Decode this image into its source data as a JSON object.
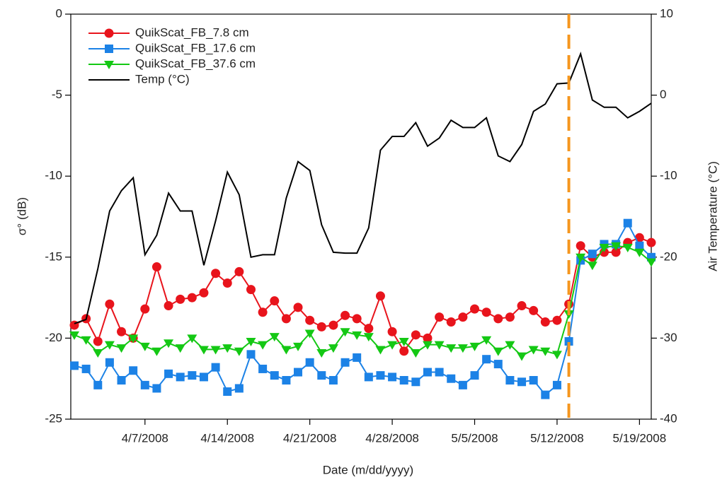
{
  "chart_data": {
    "type": "line",
    "xlabel": "Date (m/dd/yyyy)",
    "ylabel": "σ° (dB)",
    "y2label": "Air Temperature (°C)",
    "x": [
      "4/1/2008",
      "4/2/2008",
      "4/3/2008",
      "4/4/2008",
      "4/5/2008",
      "4/6/2008",
      "4/7/2008",
      "4/8/2008",
      "4/9/2008",
      "4/10/2008",
      "4/11/2008",
      "4/12/2008",
      "4/13/2008",
      "4/14/2008",
      "4/15/2008",
      "4/16/2008",
      "4/17/2008",
      "4/18/2008",
      "4/19/2008",
      "4/20/2008",
      "4/21/2008",
      "4/22/2008",
      "4/23/2008",
      "4/24/2008",
      "4/25/2008",
      "4/26/2008",
      "4/27/2008",
      "4/28/2008",
      "4/29/2008",
      "4/30/2008",
      "5/1/2008",
      "5/2/2008",
      "5/3/2008",
      "5/4/2008",
      "5/5/2008",
      "5/6/2008",
      "5/7/2008",
      "5/8/2008",
      "5/9/2008",
      "5/10/2008",
      "5/11/2008",
      "5/12/2008",
      "5/13/2008",
      "5/14/2008",
      "5/15/2008",
      "5/16/2008",
      "5/17/2008",
      "5/18/2008",
      "5/19/2008",
      "5/20/2008"
    ],
    "xlim": [
      "4/1/2008",
      "5/20/2008"
    ],
    "xticks": [
      "4/7/2008",
      "4/14/2008",
      "4/21/2008",
      "4/28/2008",
      "5/5/2008",
      "5/12/2008",
      "5/19/2008"
    ],
    "ylim": [
      -25,
      0
    ],
    "yticks": [
      0,
      -5,
      -10,
      -15,
      -20,
      -25
    ],
    "y2lim": [
      -40,
      10
    ],
    "y2ticks": [
      10,
      0,
      -10,
      -20,
      -30,
      -40
    ],
    "legend": "upper left",
    "vertical_line": {
      "x": "5/13/2008",
      "color": "#f5961e"
    },
    "series": [
      {
        "name": "QuikScat_FB_7.8 cm",
        "color": "#e8141c",
        "marker": "circle",
        "values": [
          -19.2,
          -18.8,
          -20.2,
          -17.9,
          -19.6,
          -20.0,
          -18.2,
          -15.6,
          -18.0,
          -17.6,
          -17.5,
          -17.2,
          -16.0,
          -16.6,
          -15.9,
          -17.0,
          -18.4,
          -17.7,
          -18.8,
          -18.1,
          -18.9,
          -19.3,
          -19.2,
          -18.6,
          -18.8,
          -19.4,
          -17.4,
          -19.6,
          -20.8,
          -19.8,
          -20.0,
          -18.7,
          -19.0,
          -18.7,
          -18.2,
          -18.4,
          -18.8,
          -18.7,
          -18.0,
          -18.3,
          -19.0,
          -18.9,
          -17.9,
          -14.3,
          -15.0,
          -14.7,
          -14.7,
          -14.1,
          -13.8,
          -14.1
        ]
      },
      {
        "name": "QuikScat_FB_17.6 cm",
        "color": "#1c82e6",
        "marker": "square",
        "values": [
          -21.7,
          -21.9,
          -22.9,
          -21.5,
          -22.6,
          -22.0,
          -22.9,
          -23.1,
          -22.2,
          -22.4,
          -22.3,
          -22.4,
          -21.8,
          -23.3,
          -23.1,
          -21.0,
          -21.9,
          -22.3,
          -22.6,
          -22.1,
          -21.5,
          -22.3,
          -22.6,
          -21.5,
          -21.2,
          -22.4,
          -22.3,
          -22.4,
          -22.6,
          -22.7,
          -22.1,
          -22.1,
          -22.5,
          -22.9,
          -22.3,
          -21.3,
          -21.6,
          -22.6,
          -22.7,
          -22.6,
          -23.5,
          -22.9,
          -20.2,
          -15.2,
          -14.8,
          -14.2,
          -14.2,
          -12.9,
          -14.3,
          -15.0
        ]
      },
      {
        "name": "QuikScat_FB_37.6 cm",
        "color": "#14c814",
        "marker": "triangle-down",
        "values": [
          -19.8,
          -20.1,
          -20.9,
          -20.4,
          -20.6,
          -20.0,
          -20.5,
          -20.8,
          -20.3,
          -20.6,
          -20.0,
          -20.7,
          -20.7,
          -20.6,
          -20.8,
          -20.2,
          -20.4,
          -19.9,
          -20.7,
          -20.5,
          -19.7,
          -20.9,
          -20.6,
          -19.6,
          -19.8,
          -19.9,
          -20.7,
          -20.4,
          -20.2,
          -20.9,
          -20.4,
          -20.4,
          -20.6,
          -20.6,
          -20.5,
          -20.1,
          -20.8,
          -20.4,
          -21.1,
          -20.7,
          -20.8,
          -21.0,
          -18.5,
          -15.0,
          -15.5,
          -14.4,
          -14.3,
          -14.4,
          -14.7,
          -15.3
        ]
      },
      {
        "name": "Temp (°C)",
        "color": "#000000",
        "marker": "none",
        "axis": "y2",
        "values": [
          -28.2,
          -27.7,
          -21.4,
          -14.3,
          -11.8,
          -10.2,
          -19.7,
          -17.3,
          -12.1,
          -14.3,
          -14.3,
          -21.0,
          -15.5,
          -9.5,
          -12.3,
          -20.0,
          -19.7,
          -19.7,
          -12.7,
          -8.2,
          -9.3,
          -16.0,
          -19.4,
          -19.5,
          -19.5,
          -16.4,
          -6.8,
          -5.1,
          -5.1,
          -3.4,
          -6.3,
          -5.3,
          -3.1,
          -4.0,
          -4.0,
          -2.8,
          -7.5,
          -8.2,
          -6.1,
          -2.0,
          -1.1,
          1.4,
          1.5,
          5.1,
          -0.6,
          -1.5,
          -1.5,
          -2.8,
          -2.0,
          -1.0
        ]
      }
    ]
  }
}
